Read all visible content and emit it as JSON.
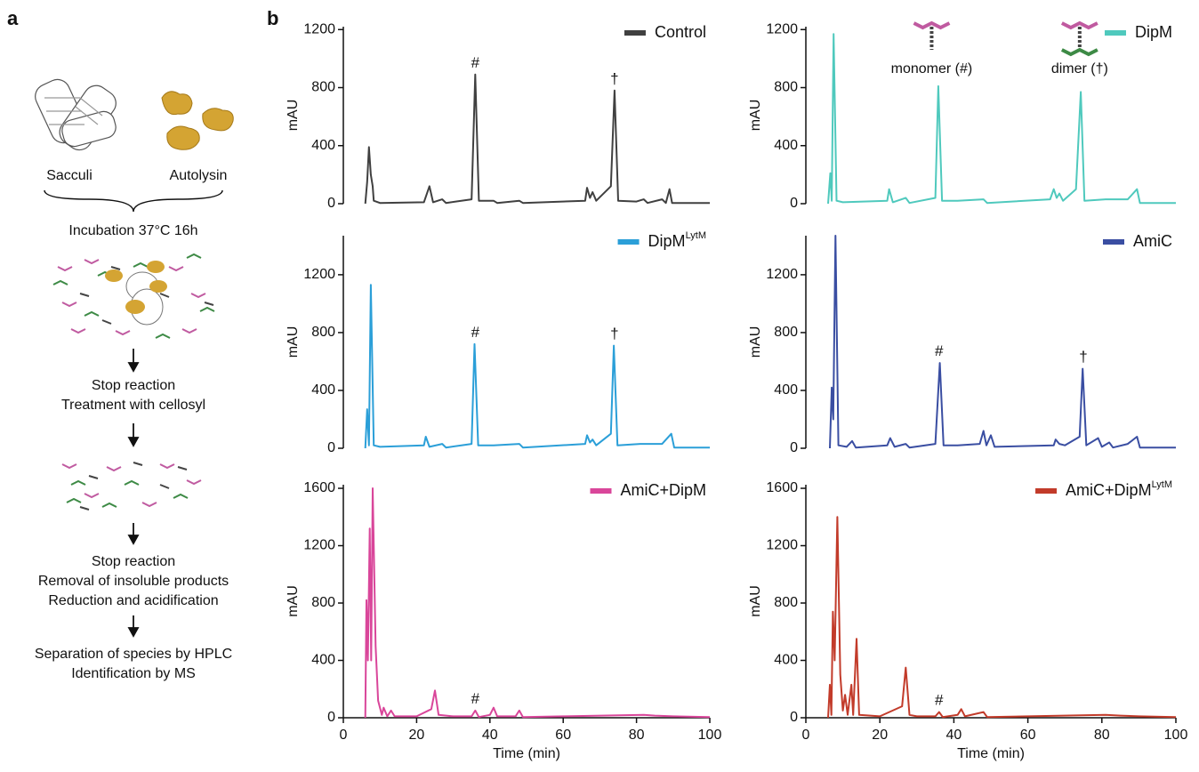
{
  "panel_a": {
    "label": "a",
    "sacculi": "Sacculi",
    "autolysin": "Autolysin",
    "incubation": "Incubation 37°C 16h",
    "step2": [
      "Stop reaction",
      "Treatment with cellosyl"
    ],
    "step3": [
      "Stop reaction",
      "Removal of insoluble products",
      "Reduction and acidification"
    ],
    "step4": [
      "Separation of species by HPLC",
      "Identification by MS"
    ]
  },
  "panel_b": {
    "label": "b"
  },
  "chart_data": [
    {
      "type": "line",
      "ylabel": "mAU",
      "xlim": [
        0,
        100
      ],
      "ylim": [
        0,
        1220
      ],
      "yticks": [
        0,
        400,
        800,
        1200
      ],
      "legend": "upper right",
      "series": [
        {
          "name": "Control",
          "color": "#404040",
          "x": [
            6,
            6.5,
            7,
            7.5,
            8,
            8.3,
            10,
            22,
            23.5,
            24.5,
            27,
            28,
            35,
            36,
            37,
            41,
            42,
            48,
            49,
            66,
            66.5,
            67.3,
            68,
            69,
            73,
            74,
            75,
            80,
            82,
            83,
            87,
            88,
            89,
            89.7,
            100
          ],
          "values": [
            0,
            150,
            390,
            200,
            120,
            20,
            5,
            10,
            120,
            10,
            30,
            5,
            30,
            890,
            20,
            20,
            5,
            20,
            5,
            20,
            110,
            40,
            80,
            20,
            120,
            780,
            20,
            15,
            30,
            5,
            30,
            5,
            100,
            5,
            5
          ]
        }
      ],
      "annotations": [
        {
          "text": "#",
          "x": 36,
          "y": 890
        },
        {
          "text": "†",
          "x": 74,
          "y": 780
        }
      ]
    },
    {
      "type": "line",
      "ylabel": "mAU",
      "xlim": [
        0,
        100
      ],
      "ylim": [
        0,
        1220
      ],
      "yticks": [
        0,
        400,
        800,
        1200
      ],
      "legend": "upper right",
      "series": [
        {
          "name": "DipM",
          "color": "#4fc9bd",
          "x": [
            6,
            6.6,
            7,
            7.5,
            8.3,
            10,
            22,
            22.5,
            23.5,
            27,
            28,
            35,
            35.8,
            36.8,
            41,
            48,
            49,
            66,
            67,
            67.8,
            68.5,
            69.5,
            73,
            74.3,
            75.3,
            81,
            87,
            89.5,
            90.3,
            100
          ],
          "values": [
            0,
            210,
            20,
            1170,
            20,
            10,
            20,
            100,
            10,
            40,
            5,
            40,
            810,
            20,
            20,
            30,
            5,
            30,
            100,
            40,
            70,
            20,
            100,
            770,
            20,
            30,
            30,
            100,
            5,
            5
          ]
        }
      ],
      "icon_labels": [
        {
          "text": "monomer (#)",
          "x": 34
        },
        {
          "text": "dimer (†)",
          "x": 74
        }
      ]
    },
    {
      "type": "line",
      "ylabel": "mAU",
      "xlim": [
        0,
        100
      ],
      "ylim": [
        0,
        1470
      ],
      "yticks": [
        0,
        400,
        800,
        1200
      ],
      "legend": "upper right",
      "series": [
        {
          "name": "DipM",
          "superscript": "LytM",
          "color": "#2b9fd8",
          "x": [
            6,
            6.5,
            7,
            7.5,
            8.3,
            10,
            22,
            22.5,
            23.5,
            27,
            28,
            35,
            35.8,
            36.8,
            41,
            48,
            49,
            66,
            66.5,
            67.3,
            68,
            69,
            73,
            73.8,
            74.8,
            81,
            87,
            89.5,
            90.3,
            100
          ],
          "values": [
            0,
            270,
            20,
            1130,
            20,
            10,
            20,
            80,
            10,
            30,
            5,
            30,
            720,
            20,
            20,
            30,
            5,
            30,
            90,
            40,
            60,
            20,
            100,
            710,
            20,
            30,
            30,
            100,
            5,
            5
          ]
        }
      ],
      "annotations": [
        {
          "text": "#",
          "x": 36,
          "y": 720
        },
        {
          "text": "†",
          "x": 74,
          "y": 710
        }
      ]
    },
    {
      "type": "line",
      "ylabel": "mAU",
      "xlim": [
        0,
        100
      ],
      "ylim": [
        0,
        1470
      ],
      "yticks": [
        0,
        400,
        800,
        1200
      ],
      "legend": "upper right",
      "series": [
        {
          "name": "AmiC",
          "color": "#3a4ea2",
          "x": [
            6.5,
            7,
            7.4,
            8,
            8.8,
            11,
            12.5,
            13.5,
            22,
            22.8,
            24,
            27,
            28,
            35,
            36.2,
            37.2,
            41,
            47,
            48,
            48.8,
            50,
            51,
            67,
            67.5,
            68.5,
            70,
            74,
            74.8,
            75.8,
            79,
            80,
            82,
            83,
            87,
            89.5,
            90.3,
            100
          ],
          "values": [
            0,
            420,
            200,
            1470,
            20,
            10,
            50,
            5,
            20,
            70,
            10,
            30,
            5,
            30,
            590,
            20,
            20,
            30,
            120,
            20,
            90,
            10,
            20,
            60,
            30,
            20,
            80,
            550,
            20,
            70,
            10,
            40,
            5,
            30,
            80,
            5,
            5
          ]
        }
      ],
      "annotations": [
        {
          "text": "#",
          "x": 36,
          "y": 590
        },
        {
          "text": "†",
          "x": 75,
          "y": 550
        }
      ]
    },
    {
      "type": "line",
      "ylabel": "mAU",
      "xlabel": "Time (min)",
      "xlim": [
        0,
        100
      ],
      "ylim": [
        0,
        1625
      ],
      "xticks": [
        0,
        20,
        40,
        60,
        80,
        100
      ],
      "yticks": [
        0,
        400,
        800,
        1200,
        1600
      ],
      "legend": "upper right",
      "series": [
        {
          "name": "AmiC+DipM",
          "color": "#d9469a",
          "x": [
            6,
            6.3,
            6.7,
            7.2,
            7.6,
            8,
            8.8,
            9.5,
            10.5,
            11,
            12,
            13,
            14,
            20,
            24,
            25,
            26,
            30,
            35,
            36,
            37,
            40,
            41,
            42,
            47,
            48,
            49,
            60,
            82,
            85,
            90,
            100
          ],
          "values": [
            0,
            820,
            400,
            1320,
            400,
            1600,
            500,
            120,
            20,
            70,
            10,
            50,
            10,
            10,
            60,
            190,
            20,
            10,
            10,
            50,
            5,
            20,
            70,
            10,
            10,
            50,
            5,
            10,
            20,
            15,
            10,
            5
          ]
        }
      ],
      "annotations": [
        {
          "text": "#",
          "x": 36,
          "y": 50
        }
      ]
    },
    {
      "type": "line",
      "ylabel": "mAU",
      "xlabel": "Time (min)",
      "xlim": [
        0,
        100
      ],
      "ylim": [
        0,
        1625
      ],
      "xticks": [
        0,
        20,
        40,
        60,
        80,
        100
      ],
      "yticks": [
        0,
        400,
        800,
        1200,
        1600
      ],
      "legend": "upper right",
      "series": [
        {
          "name": "AmiC+DipM",
          "superscript": "LytM",
          "color": "#c23b2a",
          "x": [
            6,
            6.5,
            6.9,
            7.3,
            7.8,
            8.5,
            9.3,
            10,
            10.6,
            11.3,
            12.3,
            12.8,
            13.7,
            14.4,
            20,
            26,
            27,
            28,
            30,
            35,
            36,
            37,
            41,
            42,
            43,
            48,
            49,
            60,
            81,
            85,
            90,
            100
          ],
          "values": [
            0,
            230,
            20,
            740,
            400,
            1400,
            300,
            50,
            160,
            20,
            230,
            20,
            550,
            20,
            10,
            80,
            350,
            20,
            10,
            10,
            40,
            5,
            20,
            60,
            10,
            40,
            5,
            10,
            20,
            15,
            10,
            5
          ]
        }
      ],
      "annotations": [
        {
          "text": "#",
          "x": 36,
          "y": 40
        }
      ]
    }
  ]
}
